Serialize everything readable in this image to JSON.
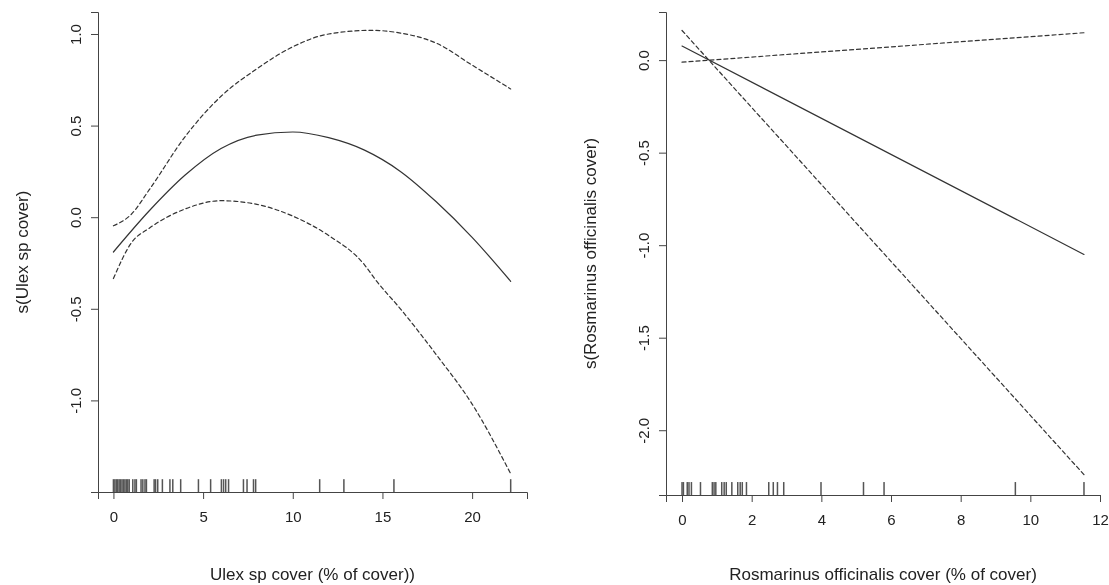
{
  "chart_data": [
    {
      "type": "line",
      "xlabel": "Ulex sp cover (% of cover))",
      "ylabel": "s(Ulex sp cover)",
      "xlim": [
        -0.86,
        23.06
      ],
      "ylim": [
        -1.5,
        1.12
      ],
      "xticks": [
        0,
        5,
        10,
        15,
        20
      ],
      "yticks": [
        {
          "value": -1,
          "label": "-1.0"
        },
        {
          "value": -0.5,
          "label": "-0.5"
        },
        {
          "value": 0,
          "label": "0.0"
        },
        {
          "value": 0.5,
          "label": "0.5"
        },
        {
          "value": 1,
          "label": "1.0"
        }
      ],
      "grid": false,
      "series": [
        {
          "color": "#333333",
          "line_style": "solid",
          "x": [
            0,
            2,
            4,
            6,
            8,
            10,
            12,
            14,
            16,
            18,
            20,
            22.15
          ],
          "values": [
            -0.19,
            0.035,
            0.23,
            0.375,
            0.448,
            0.465,
            0.434,
            0.366,
            0.25,
            0.084,
            -0.11,
            -0.35
          ]
        },
        {
          "color": "#333333",
          "line_style": "dashed",
          "x": [
            0,
            1,
            2,
            4,
            6,
            8,
            10,
            12,
            14.4,
            16,
            18,
            20,
            22.15
          ],
          "values": [
            -0.047,
            0.016,
            0.15,
            0.44,
            0.66,
            0.81,
            0.93,
            1.0,
            1.02,
            1.005,
            0.95,
            0.83,
            0.7
          ]
        },
        {
          "color": "#333333",
          "line_style": "dashed",
          "x": [
            0,
            1,
            2,
            4,
            6,
            8,
            10,
            12,
            14,
            14.6,
            16,
            18,
            20,
            22.15
          ],
          "values": [
            -0.335,
            -0.14,
            -0.06,
            0.045,
            0.09,
            0.07,
            0.006,
            -0.1,
            -0.26,
            -0.34,
            -0.5,
            -0.75,
            -1.02,
            -1.4
          ]
        },
        {
          "type": "bar",
          "color": "#555555",
          "x": [
            0,
            0.08,
            0.16,
            0.24,
            0.32,
            0.4,
            0.48,
            0.56,
            0.64,
            0.72,
            0.8,
            0.88,
            1.08,
            1.2,
            1.28,
            1.54,
            1.64,
            1.76,
            1.84,
            2.27,
            2.35,
            2.47,
            2.73,
            3.15,
            3.31,
            3.75,
            4.74,
            5.42,
            6.02,
            6.14,
            6.26,
            6.42,
            7.25,
            7.45,
            7.81,
            7.93,
            11.5,
            12.85,
            15.64,
            22.15
          ],
          "base": [
            -1.5,
            -1.5,
            -1.5,
            -1.5,
            -1.5,
            -1.5,
            -1.5,
            -1.5,
            -1.5,
            -1.5,
            -1.5,
            -1.5,
            -1.5,
            -1.5,
            -1.5,
            -1.5,
            -1.5,
            -1.5,
            -1.5,
            -1.5,
            -1.5,
            -1.5,
            -1.5,
            -1.5,
            -1.5,
            -1.5,
            -1.5,
            -1.5,
            -1.5,
            -1.5,
            -1.5,
            -1.5,
            -1.5,
            -1.5,
            -1.5,
            -1.5,
            -1.5,
            -1.5,
            -1.5,
            -1.5
          ],
          "values": [
            0.07,
            0.07,
            0.07,
            0.07,
            0.07,
            0.07,
            0.07,
            0.07,
            0.07,
            0.07,
            0.07,
            0.07,
            0.07,
            0.07,
            0.07,
            0.07,
            0.07,
            0.07,
            0.07,
            0.07,
            0.07,
            0.07,
            0.07,
            0.07,
            0.07,
            0.07,
            0.07,
            0.07,
            0.07,
            0.07,
            0.07,
            0.07,
            0.07,
            0.07,
            0.07,
            0.07,
            0.07,
            0.07,
            0.07,
            0.07
          ]
        }
      ]
    },
    {
      "type": "line",
      "xlabel": "Rosmarinus  officinalis cover (% of cover)",
      "ylabel": "s(Rosmarinus officinalis cover)",
      "xlim": [
        -0.46,
        12
      ],
      "ylim": [
        -2.35,
        0.26
      ],
      "xticks": [
        0,
        2,
        4,
        6,
        8,
        10,
        12
      ],
      "yticks": [
        {
          "value": -2,
          "label": "-2.0"
        },
        {
          "value": -1.5,
          "label": "-1.5"
        },
        {
          "value": -1,
          "label": "-1.0"
        },
        {
          "value": -0.5,
          "label": "-0.5"
        },
        {
          "value": 0,
          "label": "0.0"
        }
      ],
      "grid": false,
      "series": [
        {
          "color": "#333333",
          "line_style": "solid",
          "x": [
            0,
            11.54
          ],
          "values": [
            0.076,
            -1.05
          ]
        },
        {
          "color": "#333333",
          "line_style": "dashed",
          "x": [
            0,
            11.54
          ],
          "values": [
            -0.011,
            0.148
          ]
        },
        {
          "color": "#333333",
          "line_style": "dashed",
          "x": [
            0,
            11.54
          ],
          "values": [
            0.16,
            -2.24
          ]
        },
        {
          "type": "bar",
          "color": "#555555",
          "x": [
            0,
            0.04,
            0.15,
            0.2,
            0.27,
            0.53,
            0.87,
            0.92,
            0.97,
            1.14,
            1.21,
            1.27,
            1.43,
            1.6,
            1.67,
            1.73,
            1.85,
            2.49,
            2.62,
            2.74,
            2.92,
            3.99,
            5.21,
            5.8,
            9.57,
            11.54
          ],
          "base": [
            -2.35,
            -2.35,
            -2.35,
            -2.35,
            -2.35,
            -2.35,
            -2.35,
            -2.35,
            -2.35,
            -2.35,
            -2.35,
            -2.35,
            -2.35,
            -2.35,
            -2.35,
            -2.35,
            -2.35,
            -2.35,
            -2.35,
            -2.35,
            -2.35,
            -2.35,
            -2.35,
            -2.35,
            -2.35,
            -2.35
          ],
          "values": [
            0.07,
            0.07,
            0.07,
            0.07,
            0.07,
            0.07,
            0.07,
            0.07,
            0.07,
            0.07,
            0.07,
            0.07,
            0.07,
            0.07,
            0.07,
            0.07,
            0.07,
            0.07,
            0.07,
            0.07,
            0.07,
            0.07,
            0.07,
            0.07,
            0.07,
            0.07
          ]
        }
      ]
    }
  ]
}
